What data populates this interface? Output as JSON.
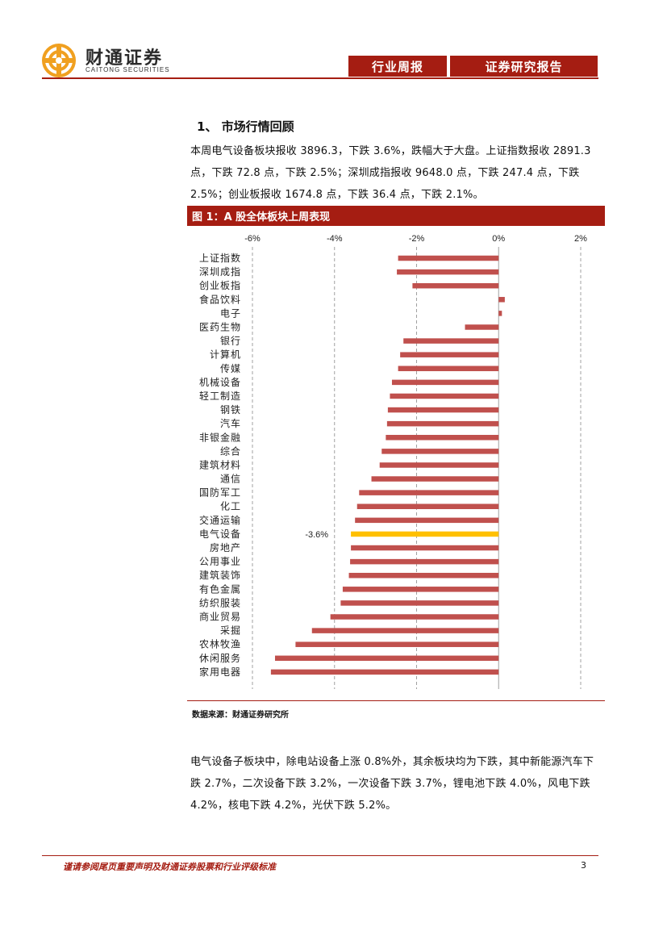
{
  "header": {
    "logo_cn": "财通证券",
    "logo_en": "CAITONG SECURITIES",
    "tab_1": "行业周报",
    "tab_2": "证券研究报告"
  },
  "section": {
    "title": "1、 市场行情回顾",
    "para1": "本周电气设备板块报收 3896.3，下跌 3.6%，跌幅大于大盘。上证指数报收 2891.3 点，下跌 72.8 点，下跌 2.5%；深圳成指报收 9648.0 点，下跌 247.4 点，下跌 2.5%；创业板报收 1674.8 点，下跌 36.4 点，下跌 2.1%。"
  },
  "figure": {
    "caption": "图 1：A 股全体板块上周表现",
    "source": "数据来源：财通证券研究所"
  },
  "chart_data": {
    "type": "bar",
    "orientation": "horizontal",
    "xlim": [
      -6,
      2
    ],
    "x_ticks": [
      "-6%",
      "-4%",
      "-2%",
      "0%",
      "2%"
    ],
    "x_tick_values": [
      -6,
      -4,
      -2,
      0,
      2
    ],
    "grid": true,
    "categories": [
      "上证指数",
      "深圳成指",
      "创业板指",
      "食品饮料",
      "电子",
      "医药生物",
      "银行",
      "计算机",
      "传媒",
      "机械设备",
      "轻工制造",
      "钢铁",
      "汽车",
      "非银金融",
      "综合",
      "建筑材料",
      "通信",
      "国防军工",
      "化工",
      "交通运输",
      "电气设备",
      "房地产",
      "公用事业",
      "建筑装饰",
      "有色金属",
      "纺织服装",
      "商业贸易",
      "采掘",
      "农林牧渔",
      "休闲服务",
      "家用电器"
    ],
    "values": [
      -2.45,
      -2.48,
      -2.1,
      0.15,
      0.08,
      -0.82,
      -2.32,
      -2.4,
      -2.45,
      -2.6,
      -2.65,
      -2.7,
      -2.72,
      -2.75,
      -2.85,
      -2.9,
      -3.1,
      -3.4,
      -3.45,
      -3.5,
      -3.6,
      -3.6,
      -3.62,
      -3.65,
      -3.8,
      -3.85,
      -4.1,
      -4.55,
      -4.95,
      -5.45,
      -5.55
    ],
    "highlight_index": 20,
    "highlight_label": "-3.6%",
    "bar_color": "#c0504d",
    "highlight_color": "#ffc000"
  },
  "body": {
    "para2": "电气设备子板块中，除电站设备上涨 0.8%外，其余板块均为下跌，其中新能源汽车下跌 2.7%，二次设备下跌 3.2%，一次设备下跌 3.7%，锂电池下跌 4.0%，风电下跌 4.2%，核电下跌 4.2%，光伏下跌 5.2%。"
  },
  "footer": {
    "disclaimer": "谨请参阅尾页重要声明及财通证券股票和行业评级标准",
    "page": "3"
  },
  "colors": {
    "brand": "#a51d12",
    "logo_orange": "#f0a020"
  }
}
